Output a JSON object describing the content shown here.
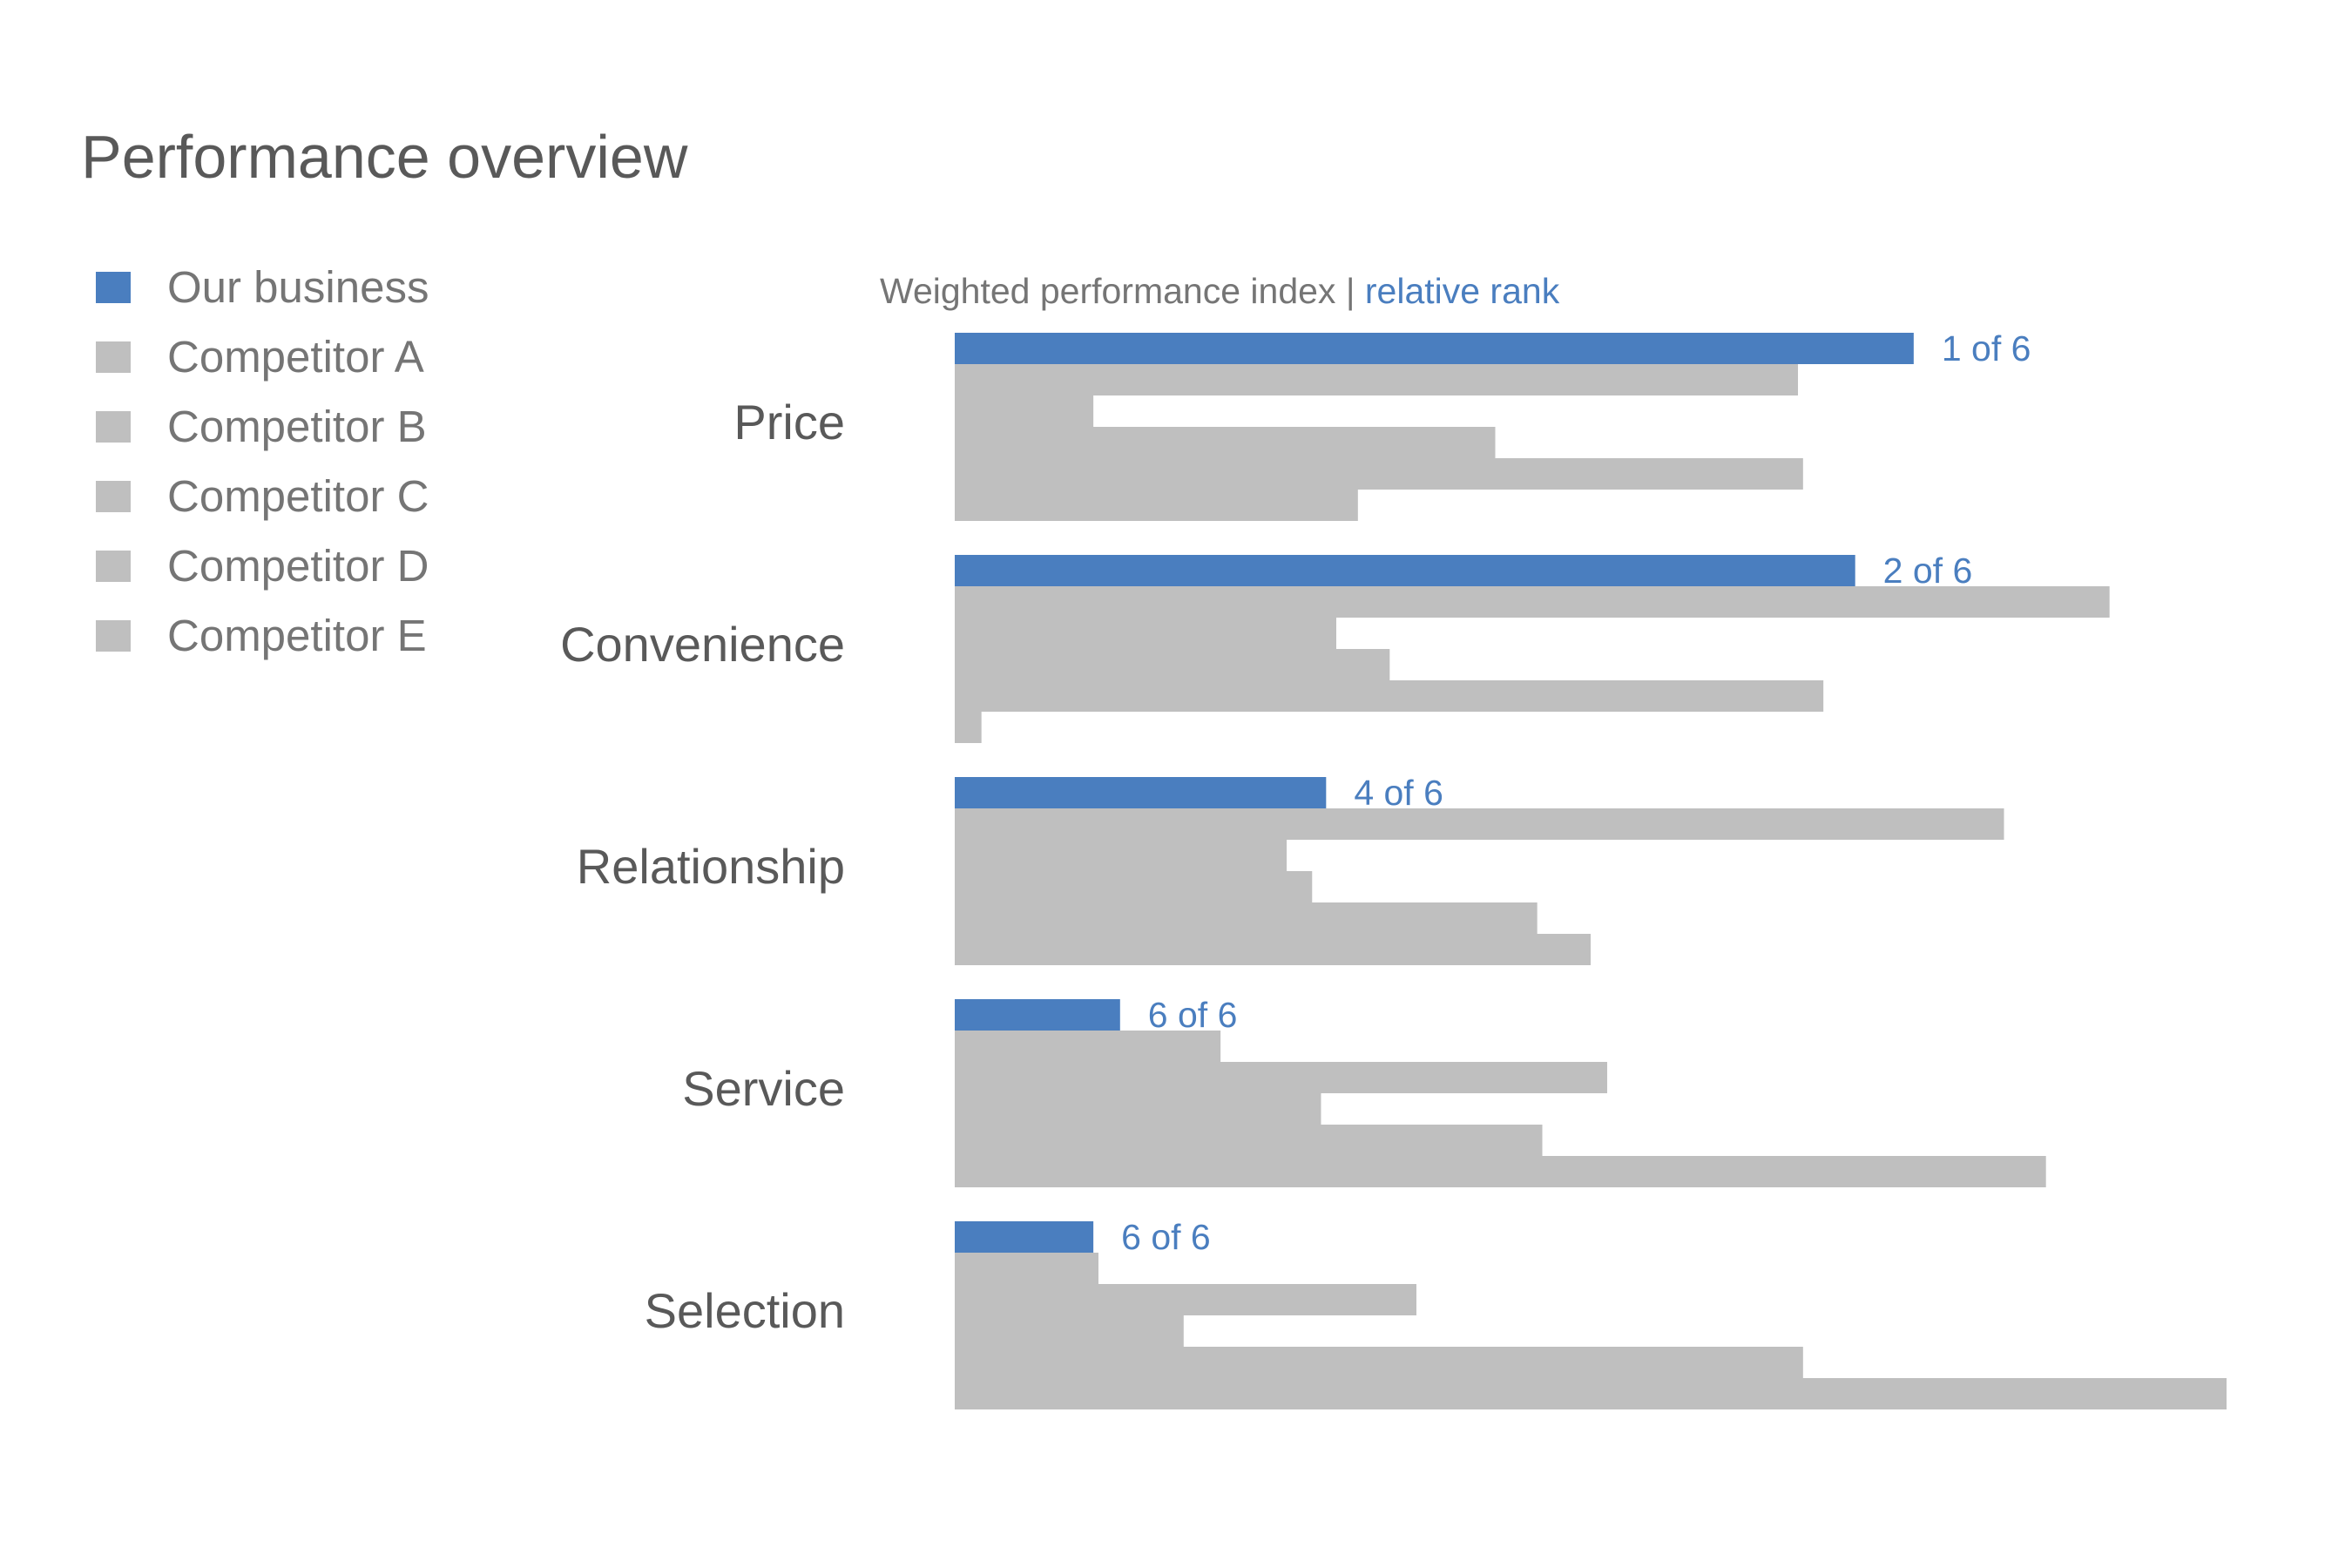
{
  "title": "Performance overview",
  "subtitle": {
    "main": "Weighted performance index",
    "separator": " | ",
    "rank_label": "relative rank"
  },
  "colors": {
    "our_business": "#4a7ebf",
    "competitor": "#bfbfbf",
    "category_text": "#595959",
    "legend_text": "#757575"
  },
  "legend": [
    {
      "label": "Our business",
      "color": "#4a7ebf"
    },
    {
      "label": "Competitor A",
      "color": "#bfbfbf"
    },
    {
      "label": "Competitor B",
      "color": "#bfbfbf"
    },
    {
      "label": "Competitor C",
      "color": "#bfbfbf"
    },
    {
      "label": "Competitor D",
      "color": "#bfbfbf"
    },
    {
      "label": "Competitor E",
      "color": "#bfbfbf"
    }
  ],
  "chart_data": {
    "type": "bar",
    "orientation": "horizontal",
    "categories": [
      "Price",
      "Convenience",
      "Relationship",
      "Service",
      "Selection"
    ],
    "series": [
      {
        "name": "Our business",
        "values": [
          75.4,
          70.8,
          29.2,
          13.0,
          10.9
        ]
      },
      {
        "name": "Competitor A",
        "values": [
          66.3,
          90.8,
          82.5,
          20.9,
          11.3
        ]
      },
      {
        "name": "Competitor B",
        "values": [
          10.9,
          30.0,
          26.1,
          51.3,
          36.3
        ]
      },
      {
        "name": "Competitor C",
        "values": [
          42.5,
          34.2,
          28.1,
          28.8,
          18.0
        ]
      },
      {
        "name": "Competitor D",
        "values": [
          66.7,
          68.3,
          45.8,
          46.2,
          66.7
        ]
      },
      {
        "name": "Competitor E",
        "values": [
          31.7,
          2.1,
          50.0,
          85.8,
          100.0
        ]
      }
    ],
    "rank_labels": [
      "1 of 6",
      "2 of 6",
      "4 of 6",
      "6 of 6",
      "6 of 6"
    ],
    "xlim": [
      0,
      100
    ],
    "grid": false,
    "legend_position": "top-left"
  }
}
